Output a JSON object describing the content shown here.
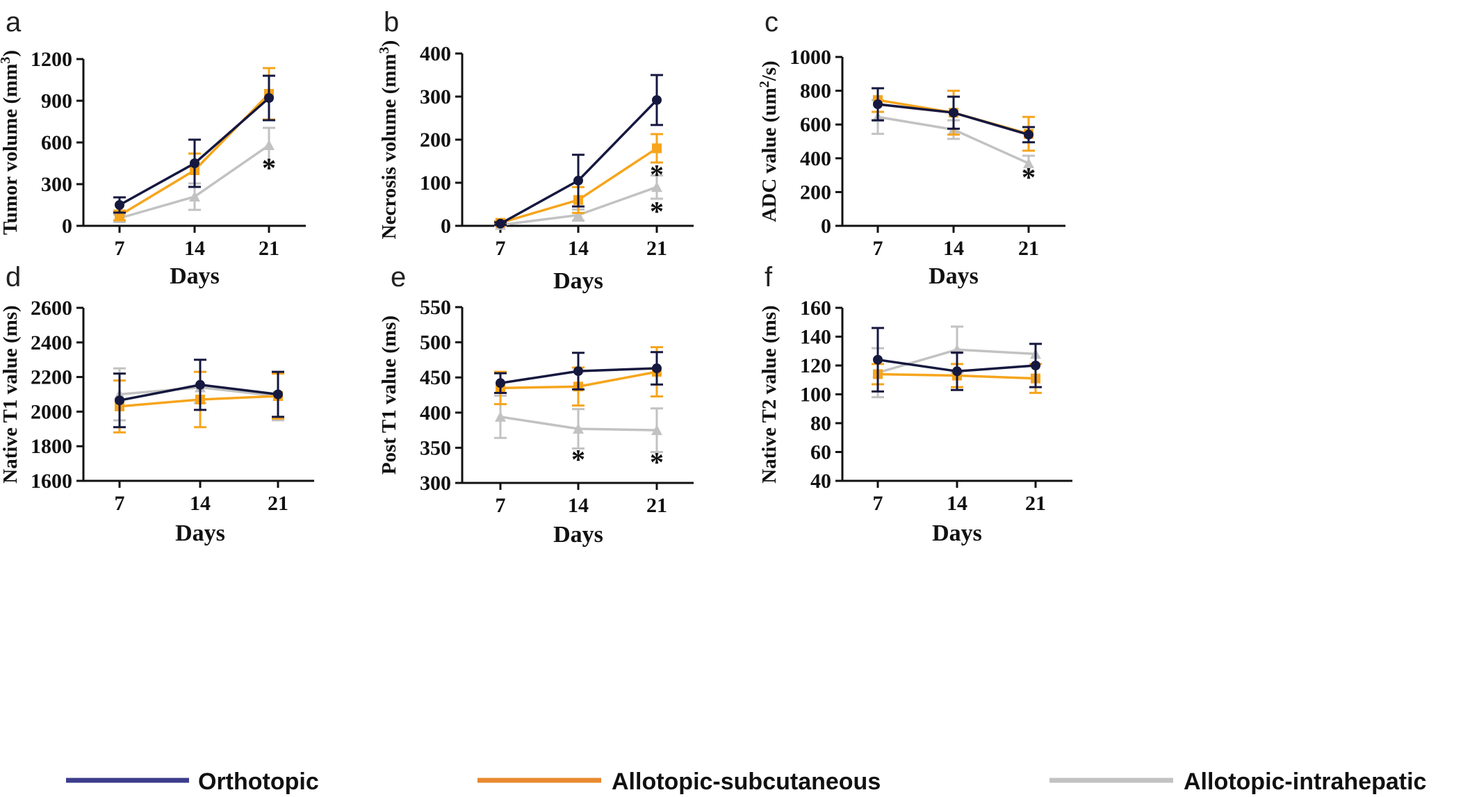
{
  "colors": {
    "orthotopic": "#15183f",
    "subcutaneous": "#f6a51c",
    "intrahepatic": "#c2c2c2",
    "axis": "#111111"
  },
  "legend": [
    {
      "label": "Orthotopic",
      "color": "#3d3d8c"
    },
    {
      "label": "Allotopic-subcutaneous",
      "color": "#e8892e"
    },
    {
      "label": "Allotopic-intrahepatic",
      "color": "#c2c2c2"
    }
  ],
  "chart_data": [
    {
      "panel": "a",
      "type": "line",
      "ylabel": "Tumor volume (mm³)",
      "ylabel_main": "Tumor volume (mm",
      "ylabel_sup": "3",
      "ylabel_end": ")",
      "xlabel": "Days",
      "ylim": [
        0,
        1200
      ],
      "yticks": [
        0,
        300,
        600,
        900,
        1200
      ],
      "x": [
        7,
        14,
        21
      ],
      "series": [
        {
          "name": "Orthotopic",
          "values": [
            150,
            450,
            920
          ],
          "errors": [
            55,
            170,
            160
          ]
        },
        {
          "name": "Allotopic-subcutaneous",
          "values": [
            75,
            400,
            950
          ],
          "errors": [
            35,
            120,
            185
          ]
        },
        {
          "name": "Allotopic-intrahepatic",
          "values": [
            55,
            210,
            580
          ],
          "errors": [
            25,
            95,
            125
          ]
        }
      ],
      "annotations": [
        {
          "x": 21,
          "y": 420,
          "text": "*"
        }
      ]
    },
    {
      "panel": "b",
      "type": "line",
      "ylabel": "Necrosis volume (mm³)",
      "ylabel_main": "Necrosis volume (mm",
      "ylabel_sup": "3",
      "ylabel_end": ")",
      "xlabel": "Days",
      "ylim": [
        0,
        400
      ],
      "yticks": [
        0,
        100,
        200,
        300,
        400
      ],
      "x": [
        7,
        14,
        21
      ],
      "series": [
        {
          "name": "Orthotopic",
          "values": [
            5,
            105,
            292
          ],
          "errors": [
            3,
            60,
            58
          ]
        },
        {
          "name": "Allotopic-subcutaneous",
          "values": [
            7,
            60,
            180
          ],
          "errors": [
            4,
            30,
            33
          ]
        },
        {
          "name": "Allotopic-intrahepatic",
          "values": [
            2,
            25,
            90
          ],
          "errors": [
            2,
            13,
            27
          ]
        }
      ],
      "annotations": [
        {
          "x": 21,
          "y": 120,
          "text": "*"
        },
        {
          "x": 21,
          "y": 35,
          "text": "*"
        }
      ]
    },
    {
      "panel": "c",
      "type": "line",
      "ylabel": "ADC value (um²/s)",
      "ylabel_main": "ADC value (um",
      "ylabel_sup": "2",
      "ylabel_end": "/s)",
      "xlabel": "Days",
      "ylim": [
        0,
        1000
      ],
      "yticks": [
        0,
        200,
        400,
        600,
        800,
        1000
      ],
      "x": [
        7,
        14,
        21
      ],
      "series": [
        {
          "name": "Orthotopic",
          "values": [
            720,
            670,
            540
          ],
          "errors": [
            95,
            95,
            45
          ]
        },
        {
          "name": "Allotopic-subcutaneous",
          "values": [
            745,
            670,
            545
          ],
          "errors": [
            70,
            130,
            100
          ]
        },
        {
          "name": "Allotopic-intrahepatic",
          "values": [
            645,
            570,
            370
          ],
          "errors": [
            100,
            55,
            45
          ]
        }
      ],
      "annotations": [
        {
          "x": 21,
          "y": 290,
          "text": "*"
        }
      ]
    },
    {
      "panel": "d",
      "type": "line",
      "ylabel": "Native T1 value (ms)",
      "xlabel": "Days",
      "ylim": [
        1600,
        2600
      ],
      "yticks": [
        1600,
        1800,
        2000,
        2200,
        2400,
        2600
      ],
      "x": [
        7,
        14,
        21
      ],
      "series": [
        {
          "name": "Orthotopic",
          "values": [
            2065,
            2155,
            2100
          ],
          "errors": [
            155,
            145,
            130
          ]
        },
        {
          "name": "Allotopic-subcutaneous",
          "values": [
            2030,
            2070,
            2090
          ],
          "errors": [
            150,
            160,
            130
          ]
        },
        {
          "name": "Allotopic-intrahepatic",
          "values": [
            2100,
            2140,
            2090
          ],
          "errors": [
            150,
            90,
            140
          ]
        }
      ],
      "annotations": []
    },
    {
      "panel": "e",
      "type": "line",
      "ylabel": "Post T1 value (ms)",
      "xlabel": "Days",
      "ylim": [
        300,
        550
      ],
      "yticks": [
        300,
        350,
        400,
        450,
        500,
        550
      ],
      "x": [
        7,
        14,
        21
      ],
      "series": [
        {
          "name": "Orthotopic",
          "values": [
            442,
            459,
            463
          ],
          "errors": [
            14,
            26,
            23
          ]
        },
        {
          "name": "Allotopic-subcutaneous",
          "values": [
            435,
            437,
            458
          ],
          "errors": [
            23,
            27,
            35
          ]
        },
        {
          "name": "Allotopic-intrahepatic",
          "values": [
            394,
            377,
            375
          ],
          "errors": [
            30,
            28,
            31
          ]
        }
      ],
      "annotations": [
        {
          "x": 14,
          "y": 334,
          "text": "*"
        },
        {
          "x": 21,
          "y": 330,
          "text": "*"
        }
      ]
    },
    {
      "panel": "f",
      "type": "line",
      "ylabel": "Native T2 value (ms)",
      "xlabel": "Days",
      "ylim": [
        40,
        160
      ],
      "yticks": [
        40,
        60,
        80,
        100,
        120,
        140,
        160
      ],
      "x": [
        7,
        14,
        21
      ],
      "series": [
        {
          "name": "Orthotopic",
          "values": [
            124,
            116,
            120
          ],
          "errors": [
            22,
            13,
            15
          ]
        },
        {
          "name": "Allotopic-subcutaneous",
          "values": [
            114,
            113,
            111
          ],
          "errors": [
            7,
            8,
            10
          ]
        },
        {
          "name": "Allotopic-intrahepatic",
          "values": [
            115,
            131,
            128
          ],
          "errors": [
            17,
            16,
            7
          ]
        }
      ],
      "annotations": []
    }
  ]
}
